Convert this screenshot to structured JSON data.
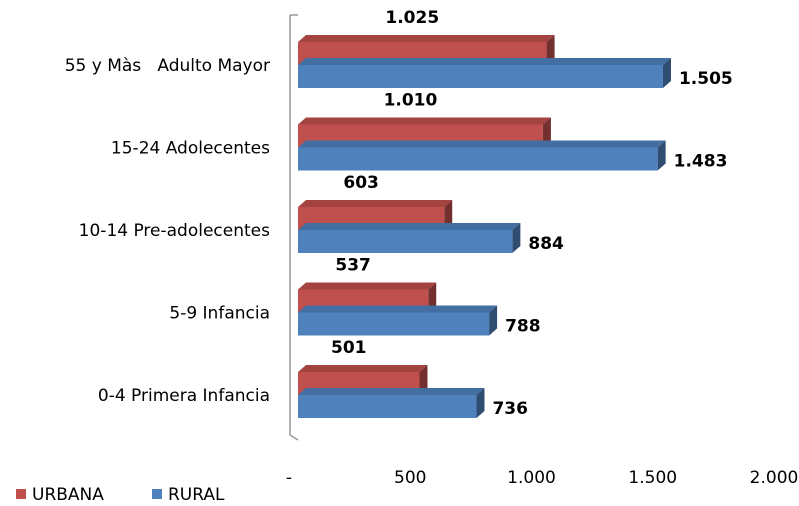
{
  "chart_data": {
    "type": "bar3d_horizontal",
    "categories": [
      "55 y Màs   Adulto Mayor",
      "15-24 Adolecentes",
      "10-14 Pre-adolecentes",
      "5-9 Infancia",
      "0-4 Primera Infancia"
    ],
    "series": [
      {
        "name": "URBANA",
        "color": "#c0504d",
        "values": [
          1025,
          1010,
          603,
          537,
          501
        ],
        "value_labels": [
          "1.025",
          "1.010",
          "603",
          "537",
          "501"
        ]
      },
      {
        "name": "RURAL",
        "color": "#4f81bd",
        "values": [
          1505,
          1483,
          884,
          788,
          736
        ],
        "value_labels": [
          "1.505",
          "1.483",
          "884",
          "788",
          "736"
        ]
      }
    ],
    "xlim": [
      0,
      2000
    ],
    "xticks": [
      {
        "value": 0,
        "label": "-"
      },
      500,
      {
        "value": 1000,
        "label": "1.000"
      },
      {
        "value": 1500,
        "label": "1.500"
      },
      {
        "value": 2000,
        "label": "2.000"
      }
    ],
    "legend": "bottom-left"
  }
}
